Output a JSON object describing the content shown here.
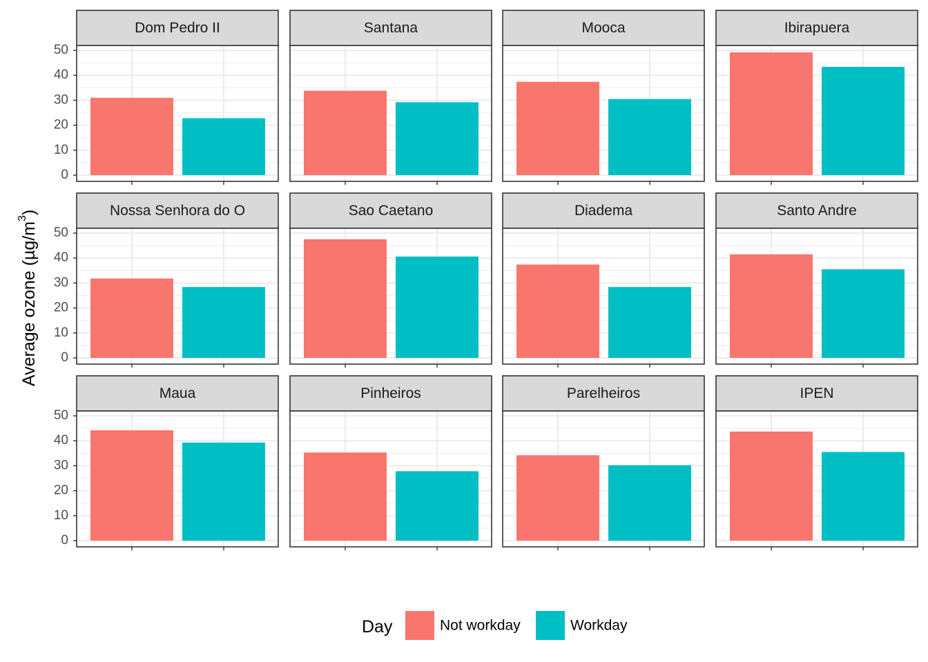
{
  "chart_data": {
    "type": "bar",
    "layout": "facet-grid",
    "facet_rows": 3,
    "facet_cols": 4,
    "ylabel": "Average ozone (µg/m",
    "ylabel_superscript": "3",
    "ylabel_suffix": ")",
    "ylim": [
      0,
      50
    ],
    "yticks": [
      0,
      10,
      20,
      30,
      40,
      50
    ],
    "grid": true,
    "categories": [
      "Not workday",
      "Workday"
    ],
    "legend": {
      "title": "Day",
      "position": "bottom",
      "items": [
        {
          "label": "Not workday",
          "color": "#F8766D"
        },
        {
          "label": "Workday",
          "color": "#00BFC4"
        }
      ]
    },
    "colors": {
      "Not workday": "#F8766D",
      "Workday": "#00BFC4",
      "strip": "#D9D9D9",
      "grid": "#EBEBEB"
    },
    "facets": [
      {
        "name": "Dom Pedro II",
        "values": [
          31,
          22.8
        ]
      },
      {
        "name": "Santana",
        "values": [
          33.8,
          29.2
        ]
      },
      {
        "name": "Mooca",
        "values": [
          37.4,
          30.5
        ]
      },
      {
        "name": "Ibirapuera",
        "values": [
          49.2,
          43.4
        ]
      },
      {
        "name": "Nossa Senhora do O",
        "values": [
          31.8,
          28.4
        ]
      },
      {
        "name": "Sao Caetano",
        "values": [
          47.5,
          40.6
        ]
      },
      {
        "name": "Diadema",
        "values": [
          37.4,
          28.4
        ]
      },
      {
        "name": "Santo Andre",
        "values": [
          41.5,
          35.5
        ]
      },
      {
        "name": "Maua",
        "values": [
          44.2,
          39.3
        ]
      },
      {
        "name": "Pinheiros",
        "values": [
          35.3,
          27.8
        ]
      },
      {
        "name": "Parelheiros",
        "values": [
          34.2,
          30.2
        ]
      },
      {
        "name": "IPEN",
        "values": [
          43.7,
          35.5
        ]
      }
    ]
  }
}
